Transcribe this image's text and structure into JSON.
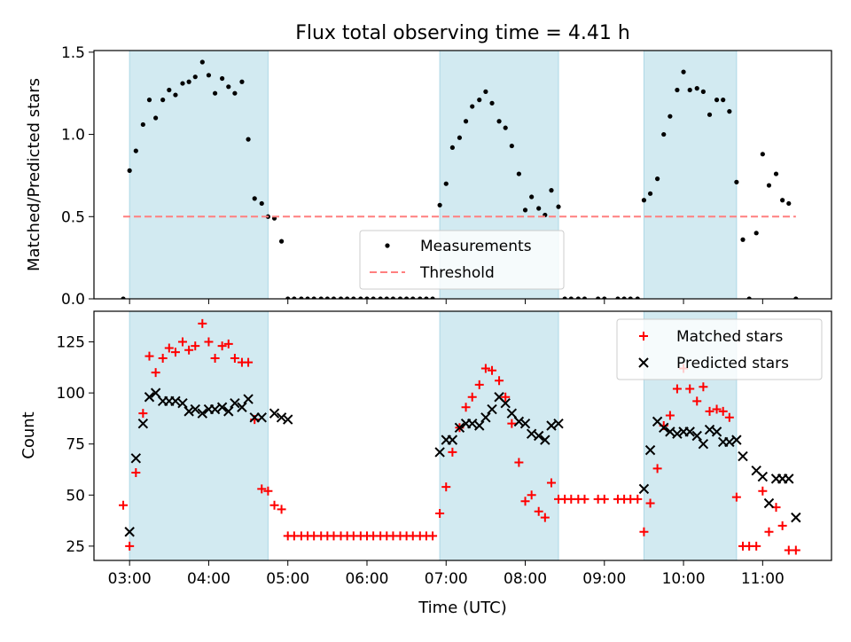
{
  "chart_data": [
    {
      "type": "scatter",
      "title": "Flux total observing time = 4.41 h",
      "xlabel": "",
      "ylabel": "Matched/Predicted stars",
      "xlim": [
        2.55,
        11.87
      ],
      "ylim": [
        0,
        1.51
      ],
      "yticks": [
        0.0,
        0.5,
        1.0,
        1.5
      ],
      "ytick_labels": [
        "0.0",
        "0.5",
        "1.0",
        "1.5"
      ],
      "shaded_intervals": [
        [
          3.0,
          4.75
        ],
        [
          6.92,
          8.42
        ],
        [
          9.5,
          10.67
        ]
      ],
      "shade_color": "#add8e6",
      "legend": {
        "placement": "lower-center",
        "entries": [
          {
            "label": "Measurements",
            "marker": "dot"
          },
          {
            "label": "Threshold",
            "marker": "dashed-line"
          }
        ]
      },
      "series": [
        {
          "name": "Measurements",
          "color": "#000000",
          "marker": "dot",
          "x": [
            2.92,
            3.0,
            3.08,
            3.17,
            3.25,
            3.33,
            3.42,
            3.5,
            3.58,
            3.67,
            3.75,
            3.83,
            3.92,
            4.0,
            4.08,
            4.17,
            4.25,
            4.33,
            4.42,
            4.5,
            4.58,
            4.67,
            4.75,
            4.83,
            4.92,
            5.0,
            5.08,
            5.17,
            5.25,
            5.33,
            5.42,
            5.5,
            5.58,
            5.67,
            5.75,
            5.83,
            5.92,
            6.0,
            6.08,
            6.17,
            6.25,
            6.33,
            6.42,
            6.5,
            6.58,
            6.67,
            6.75,
            6.83,
            6.92,
            7.0,
            7.08,
            7.17,
            7.25,
            7.33,
            7.42,
            7.5,
            7.58,
            7.67,
            7.75,
            7.83,
            7.92,
            8.0,
            8.08,
            8.17,
            8.25,
            8.33,
            8.42,
            8.5,
            8.58,
            8.67,
            8.75,
            8.92,
            9.0,
            9.17,
            9.25,
            9.33,
            9.42,
            9.5,
            9.58,
            9.67,
            9.75,
            9.83,
            9.92,
            10.0,
            10.08,
            10.17,
            10.25,
            10.33,
            10.42,
            10.5,
            10.58,
            10.67,
            10.75,
            10.83,
            10.92,
            11.0,
            11.08,
            11.17,
            11.25,
            11.33,
            11.42
          ],
          "y": [
            0.0,
            0.78,
            0.9,
            1.06,
            1.21,
            1.1,
            1.21,
            1.27,
            1.24,
            1.31,
            1.32,
            1.35,
            1.44,
            1.36,
            1.25,
            1.34,
            1.29,
            1.25,
            1.32,
            0.97,
            0.61,
            0.58,
            0.5,
            0.49,
            0.35,
            0.0,
            0.0,
            0.0,
            0.0,
            0.0,
            0.0,
            0.0,
            0.0,
            0.0,
            0.0,
            0.0,
            0.0,
            0.0,
            0.0,
            0.0,
            0.0,
            0.0,
            0.0,
            0.0,
            0.0,
            0.0,
            0.0,
            0.0,
            0.57,
            0.7,
            0.92,
            0.98,
            1.08,
            1.17,
            1.21,
            1.26,
            1.19,
            1.08,
            1.04,
            0.93,
            0.76,
            0.54,
            0.62,
            0.55,
            0.51,
            0.66,
            0.56,
            0.0,
            0.0,
            0.0,
            0.0,
            0.0,
            0.0,
            0.0,
            0.0,
            0.0,
            0.0,
            0.6,
            0.64,
            0.73,
            1.0,
            1.11,
            1.27,
            1.38,
            1.27,
            1.28,
            1.26,
            1.12,
            1.21,
            1.21,
            1.14,
            0.71,
            0.36,
            0.0,
            0.4,
            0.88,
            0.69,
            0.76,
            0.6,
            0.58,
            0.0
          ]
        },
        {
          "name": "Threshold",
          "color": "#ff7f7f",
          "style": "dashed",
          "x": [
            2.92,
            11.42
          ],
          "y": [
            0.5,
            0.5
          ]
        }
      ]
    },
    {
      "type": "scatter",
      "title": "",
      "xlabel": "Time (UTC)",
      "ylabel": "Count",
      "xlim": [
        2.55,
        11.87
      ],
      "ylim": [
        18,
        140
      ],
      "xticks": [
        3,
        4,
        5,
        6,
        7,
        8,
        9,
        10,
        11
      ],
      "xtick_labels": [
        "03:00",
        "04:00",
        "05:00",
        "06:00",
        "07:00",
        "08:00",
        "09:00",
        "10:00",
        "11:00"
      ],
      "yticks": [
        25,
        50,
        75,
        100,
        125
      ],
      "ytick_labels": [
        "25",
        "50",
        "75",
        "100",
        "125"
      ],
      "shaded_intervals": [
        [
          3.0,
          4.75
        ],
        [
          6.92,
          8.42
        ],
        [
          9.5,
          10.67
        ]
      ],
      "shade_color": "#add8e6",
      "legend": {
        "placement": "top-right",
        "entries": [
          {
            "label": "Matched stars",
            "marker": "plus"
          },
          {
            "label": "Predicted stars",
            "marker": "x"
          }
        ]
      },
      "series": [
        {
          "name": "Matched stars",
          "color": "#ff0000",
          "marker": "plus",
          "x": [
            2.92,
            3.0,
            3.08,
            3.17,
            3.25,
            3.33,
            3.42,
            3.5,
            3.58,
            3.67,
            3.75,
            3.83,
            3.92,
            4.0,
            4.08,
            4.17,
            4.25,
            4.33,
            4.42,
            4.5,
            4.58,
            4.67,
            4.75,
            4.83,
            4.92,
            5.0,
            5.08,
            5.17,
            5.25,
            5.33,
            5.42,
            5.5,
            5.58,
            5.67,
            5.75,
            5.83,
            5.92,
            6.0,
            6.08,
            6.17,
            6.25,
            6.33,
            6.42,
            6.5,
            6.58,
            6.67,
            6.75,
            6.83,
            6.92,
            7.0,
            7.08,
            7.17,
            7.25,
            7.33,
            7.42,
            7.5,
            7.58,
            7.67,
            7.75,
            7.83,
            7.92,
            8.0,
            8.08,
            8.17,
            8.25,
            8.33,
            8.42,
            8.5,
            8.58,
            8.67,
            8.75,
            8.92,
            9.0,
            9.17,
            9.25,
            9.33,
            9.42,
            9.5,
            9.58,
            9.67,
            9.75,
            9.83,
            9.92,
            10.0,
            10.08,
            10.17,
            10.25,
            10.33,
            10.42,
            10.5,
            10.58,
            10.67,
            10.75,
            10.83,
            10.92,
            11.0,
            11.08,
            11.17,
            11.25,
            11.33,
            11.42
          ],
          "y": [
            45,
            25,
            61,
            90,
            118,
            110,
            117,
            122,
            120,
            125,
            121,
            123,
            134,
            125,
            117,
            123,
            124,
            117,
            115,
            115,
            87,
            53,
            52,
            45,
            43,
            30,
            30,
            30,
            30,
            30,
            30,
            30,
            30,
            30,
            30,
            30,
            30,
            30,
            30,
            30,
            30,
            30,
            30,
            30,
            30,
            30,
            30,
            30,
            41,
            54,
            71,
            83,
            93,
            98,
            104,
            112,
            111,
            106,
            98,
            85,
            66,
            47,
            50,
            42,
            39,
            56,
            48,
            48,
            48,
            48,
            48,
            48,
            48,
            48,
            48,
            48,
            48,
            32,
            46,
            63,
            84,
            89,
            102,
            112,
            102,
            96,
            103,
            91,
            92,
            91,
            88,
            49,
            25,
            25,
            25,
            52,
            32,
            44,
            35,
            23,
            23
          ]
        },
        {
          "name": "Predicted stars",
          "color": "#000000",
          "marker": "x",
          "x": [
            3.0,
            3.08,
            3.17,
            3.25,
            3.33,
            3.42,
            3.5,
            3.58,
            3.67,
            3.75,
            3.83,
            3.92,
            4.0,
            4.08,
            4.17,
            4.25,
            4.33,
            4.42,
            4.5,
            4.58,
            4.67,
            4.83,
            4.92,
            5.0,
            6.92,
            7.0,
            7.08,
            7.17,
            7.25,
            7.33,
            7.42,
            7.5,
            7.58,
            7.67,
            7.75,
            7.83,
            7.92,
            8.0,
            8.08,
            8.17,
            8.25,
            8.33,
            8.42,
            9.5,
            9.58,
            9.67,
            9.75,
            9.83,
            9.92,
            10.0,
            10.08,
            10.17,
            10.25,
            10.33,
            10.42,
            10.5,
            10.58,
            10.67,
            10.75,
            10.92,
            11.0,
            11.08,
            11.17,
            11.25,
            11.33,
            11.42
          ],
          "y": [
            32,
            68,
            85,
            98,
            100,
            96,
            96,
            96,
            95,
            91,
            92,
            90,
            92,
            92,
            93,
            91,
            95,
            93,
            97,
            88,
            88,
            90,
            88,
            87,
            71,
            77,
            77,
            83,
            85,
            85,
            84,
            88,
            92,
            98,
            95,
            90,
            86,
            85,
            80,
            79,
            77,
            84,
            85,
            53,
            72,
            86,
            83,
            81,
            80,
            81,
            81,
            79,
            75,
            82,
            81,
            76,
            76,
            77,
            69,
            62,
            59,
            46,
            58,
            58,
            58,
            39
          ]
        }
      ]
    }
  ]
}
